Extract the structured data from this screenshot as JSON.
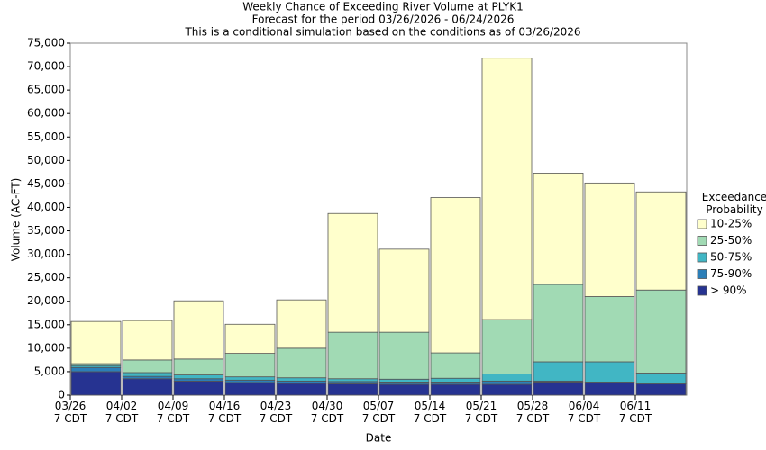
{
  "chart_data": {
    "type": "stacked_bar",
    "title": "Weekly Chance of Exceeding River Volume at PLYK1",
    "subtitle": "Forecast for the period 03/26/2026 - 06/24/2026",
    "note": "This is a conditional simulation based on the conditions as of 03/26/2026",
    "x_label": "Date",
    "y_label": "Volume (AC-FT)",
    "legend_title": "Exceedance Probability",
    "categories": [
      "03/26 7 CDT",
      "04/02 7 CDT",
      "04/09 7 CDT",
      "04/16 7 CDT",
      "04/23 7 CDT",
      "04/30 7 CDT",
      "05/07 7 CDT",
      "05/14 7 CDT",
      "05/21 7 CDT",
      "05/28 7 CDT",
      "06/04 7 CDT",
      "06/11 7 CDT"
    ],
    "series": [
      {
        "name": "> 90%",
        "color": "#263391",
        "values": [
          5000,
          3500,
          3000,
          2700,
          2500,
          2400,
          2300,
          2300,
          2300,
          2800,
          2600,
          2400
        ]
      },
      {
        "name": "75-90%",
        "color": "#2c7fb8",
        "values": [
          900,
          500,
          500,
          500,
          500,
          500,
          500,
          500,
          700,
          200,
          200,
          200
        ]
      },
      {
        "name": "50-75%",
        "color": "#41b6c4",
        "values": [
          400,
          800,
          800,
          700,
          700,
          600,
          600,
          800,
          1500,
          4100,
          4300,
          2100
        ]
      },
      {
        "name": "25-50%",
        "color": "#a1dab4",
        "values": [
          400,
          2700,
          3400,
          5000,
          6300,
          9900,
          10000,
          5400,
          11600,
          16500,
          13900,
          17700
        ]
      },
      {
        "name": "10-25%",
        "color": "#ffffcc",
        "values": [
          9000,
          8400,
          12400,
          6200,
          10300,
          25300,
          17700,
          33100,
          55700,
          23700,
          24200,
          20900
        ]
      }
    ],
    "ylim": [
      0,
      75000
    ],
    "yticks": [
      0,
      {
        "value": 5000,
        "label": "5,000"
      },
      {
        "value": 10000,
        "label": "10,000"
      },
      {
        "value": 15000,
        "label": "15,000"
      },
      {
        "value": 20000,
        "label": "20,000"
      },
      {
        "value": 25000,
        "label": "25,000"
      },
      {
        "value": 30000,
        "label": "30,000"
      },
      {
        "value": 35000,
        "label": "35,000"
      },
      {
        "value": 40000,
        "label": "40,000"
      },
      {
        "value": 45000,
        "label": "45,000"
      },
      {
        "value": 50000,
        "label": "50,000"
      },
      {
        "value": 55000,
        "label": "55,000"
      },
      {
        "value": 60000,
        "label": "60,000"
      },
      {
        "value": 65000,
        "label": "65,000"
      },
      {
        "value": 70000,
        "label": "70,000"
      },
      {
        "value": 75000,
        "label": "75,000"
      }
    ],
    "legend_position": "right"
  }
}
